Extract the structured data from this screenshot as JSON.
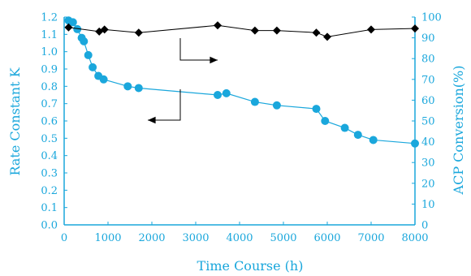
{
  "colors": {
    "left_axis": "#1aa7dc",
    "right_axis": "#1aa7dc",
    "k_series": "#1aa7dc",
    "conversion_series": "#000000",
    "x_axis": "#1aa7dc"
  },
  "chart_data": {
    "type": "line",
    "title": "",
    "xlabel": "Time Course (h)",
    "ylabel_left": "Rate Constant K",
    "ylabel_right": "ACP Conversion(%)",
    "xlim": [
      0,
      8000
    ],
    "ylim_left": [
      0,
      1.2
    ],
    "ylim_right": [
      0,
      100
    ],
    "grid": false,
    "xticks": [
      "0",
      "1000",
      "2000",
      "3000",
      "4000",
      "5000",
      "6000",
      "7000",
      "8000"
    ],
    "yticks_left": [
      "0.0",
      "0.1",
      "0.2",
      "0.3",
      "0.4",
      "0.5",
      "0.6",
      "0.7",
      "0.8",
      "0.9",
      "1.0",
      "1.1",
      "1.2"
    ],
    "yticks_right": [
      "0",
      "10",
      "20",
      "30",
      "40",
      "50",
      "60",
      "70",
      "80",
      "90",
      "100"
    ],
    "series": [
      {
        "axis": "left",
        "marker": "circle",
        "x": [
          100,
          200,
          300,
          400,
          450,
          550,
          650,
          780,
          900,
          1450,
          1700,
          3500,
          3700,
          4350,
          4850,
          5750,
          5950,
          6400,
          6700,
          7050,
          8000
        ],
        "y": [
          1.18,
          1.17,
          1.13,
          1.08,
          1.06,
          0.98,
          0.91,
          0.86,
          0.84,
          0.8,
          0.79,
          0.75,
          0.76,
          0.71,
          0.69,
          0.67,
          0.6,
          0.56,
          0.52,
          0.49,
          0.47
        ]
      },
      {
        "axis": "right",
        "marker": "diamond",
        "x": [
          100,
          800,
          920,
          1700,
          3500,
          4350,
          4850,
          5750,
          6000,
          7000,
          8000
        ],
        "y": [
          95,
          93,
          94,
          92.5,
          96,
          93.5,
          93.5,
          92.5,
          90.5,
          94,
          94.5
        ]
      }
    ],
    "annotations": [
      {
        "type": "arrow",
        "direction": "right",
        "points_to": "ACP Conversion(%)"
      },
      {
        "type": "arrow",
        "direction": "left",
        "points_to": "Rate Constant K"
      }
    ]
  }
}
